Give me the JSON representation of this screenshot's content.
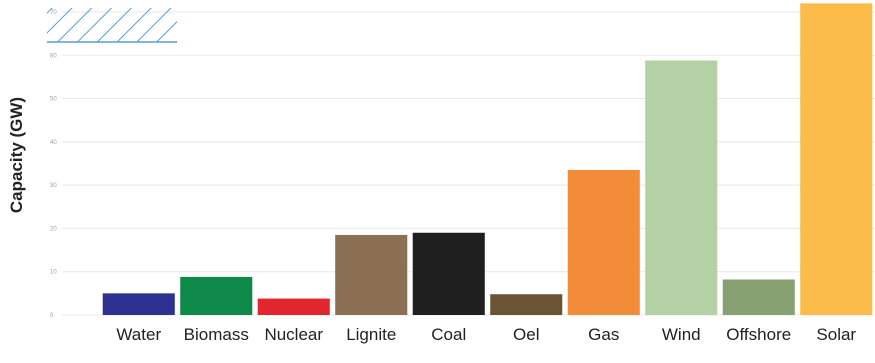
{
  "chart_data": {
    "type": "bar",
    "title": "",
    "xlabel": "",
    "ylabel": "Capacity (GW)",
    "ylim": [
      0,
      70
    ],
    "yticks": [
      0,
      10,
      20,
      30,
      40,
      50,
      60,
      70
    ],
    "grid": true,
    "categories": [
      "Water",
      "Biomass",
      "Nuclear",
      "Lignite",
      "Coal",
      "Oel",
      "Gas",
      "Wind",
      "Offshore",
      "Solar"
    ],
    "values": [
      5,
      8.8,
      3.8,
      18.5,
      19,
      4.8,
      33.5,
      58.8,
      8.2,
      72
    ],
    "colors": [
      "#2e3192",
      "#0f8a4a",
      "#e1262d",
      "#8a6f52",
      "#1f1f1f",
      "#6b5436",
      "#f28c38",
      "#b4d1a6",
      "#87a173",
      "#fbbc4a"
    ],
    "legend": {
      "position": "top-left",
      "swatch": "hatched-blue",
      "color": "#5b9bd5"
    }
  }
}
